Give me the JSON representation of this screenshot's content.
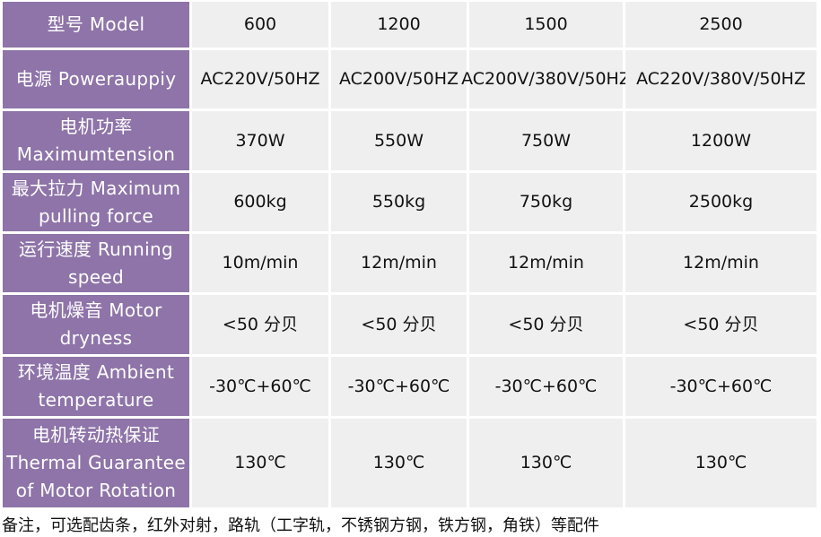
{
  "columns": [
    "600",
    "1200",
    "1500",
    "2500"
  ],
  "header_label": "型号 Model",
  "rows": [
    {
      "label": "电源 Powerauppiy",
      "values": [
        "AC220V/50HZ",
        "AC200V/50HZ",
        "AC200V/380V/50HZ",
        "AC220V/380V/50HZ"
      ]
    },
    {
      "label": "电机功率 Maximumtension",
      "values": [
        "370W",
        "550W",
        "750W",
        "1200W"
      ]
    },
    {
      "label": "最大拉力 Maximum pulling force",
      "values": [
        "600kg",
        "550kg",
        "750kg",
        "2500kg"
      ]
    },
    {
      "label": "运行速度 Running speed",
      "values": [
        "10m/min",
        "12m/min",
        "12m/min",
        "12m/min"
      ]
    },
    {
      "label": "电机燥音 Motor dryness",
      "values": [
        "<50 分贝",
        "<50 分贝",
        "<50 分贝",
        "<50 分贝"
      ]
    },
    {
      "label": "环境温度 Ambient temperature",
      "values": [
        "-30℃+60℃",
        "-30℃+60℃",
        "-30℃+60℃",
        "-30℃+60℃"
      ]
    },
    {
      "label": "电机转动热保证 Thermal Guarantee of Motor Rotation",
      "values": [
        "130℃",
        "130℃",
        "130℃",
        "130℃"
      ]
    }
  ],
  "note": "备注，可选配齿条，红外对射，路轨（工字轨，不锈钢方钢，铁方钢，角铁）等配件",
  "colors": {
    "header_bg": "#8e74a8",
    "cell_bg": "#efefef"
  }
}
